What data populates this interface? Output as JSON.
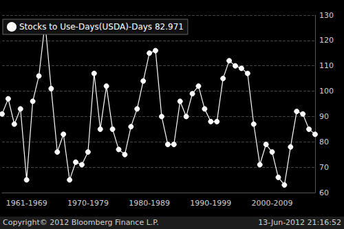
{
  "chart_data": {
    "type": "line",
    "categories": [
      null,
      null,
      null,
      null,
      "1961-1969",
      null,
      null,
      null,
      null,
      null,
      null,
      null,
      null,
      null,
      "1970-1979",
      null,
      null,
      null,
      null,
      null,
      null,
      null,
      null,
      null,
      "1980-1989",
      null,
      null,
      null,
      null,
      null,
      null,
      null,
      null,
      null,
      "1990-1999",
      null,
      null,
      null,
      null,
      null,
      null,
      null,
      null,
      null,
      "2000-2009",
      null,
      null,
      null,
      null,
      null,
      null,
      null
    ],
    "series": [
      {
        "name": "Stocks to Use-Days(USDA)-Days 82.971",
        "color": "#ffffff",
        "marker": "circle",
        "values": [
          91,
          97,
          87,
          93,
          65,
          96,
          106,
          127,
          101,
          76,
          83,
          65,
          72,
          71,
          76,
          107,
          85,
          102,
          85,
          77,
          75,
          86,
          93,
          104,
          115,
          116,
          90,
          79,
          79,
          96,
          90,
          99,
          102,
          93,
          88,
          88,
          105,
          112,
          110,
          109,
          107,
          87,
          71,
          79,
          76,
          66,
          63,
          78,
          92,
          91,
          85,
          82.971
        ]
      }
    ],
    "ylim": [
      60,
      130
    ],
    "yticks": [
      60,
      70,
      80,
      90,
      100,
      110,
      120,
      130
    ],
    "grid": true,
    "legend": "top-left",
    "annotations": [
      "Copyright© 2012 Bloomberg Finance L.P.",
      "13-Jun-2012 21:16:52"
    ]
  }
}
